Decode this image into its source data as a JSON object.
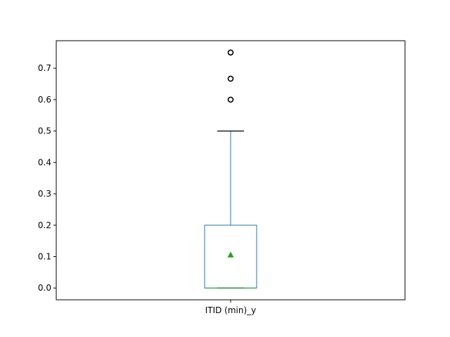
{
  "chart_data": {
    "type": "box",
    "categories": [
      "ITID (min)_y"
    ],
    "ylim": [
      -0.0375,
      0.7875
    ],
    "yticks": [
      0.0,
      0.1,
      0.2,
      0.3,
      0.4,
      0.5,
      0.6,
      0.7
    ],
    "ytick_labels": [
      "0.0",
      "0.1",
      "0.2",
      "0.3",
      "0.4",
      "0.5",
      "0.6",
      "0.7"
    ],
    "boxes": [
      {
        "category": "ITID (min)_y",
        "whisker_low": 0.0,
        "q1": 0.0,
        "median": 0.0,
        "q3": 0.2,
        "whisker_high": 0.5,
        "mean": 0.105,
        "outliers": [
          0.6,
          0.6667,
          0.75
        ]
      }
    ],
    "grid": false,
    "colors": {
      "box": "#1f77b4",
      "median": "#2ca02c",
      "mean": "#2ca02c",
      "whisker_cap": "#000000",
      "outlier": "#000000"
    }
  }
}
